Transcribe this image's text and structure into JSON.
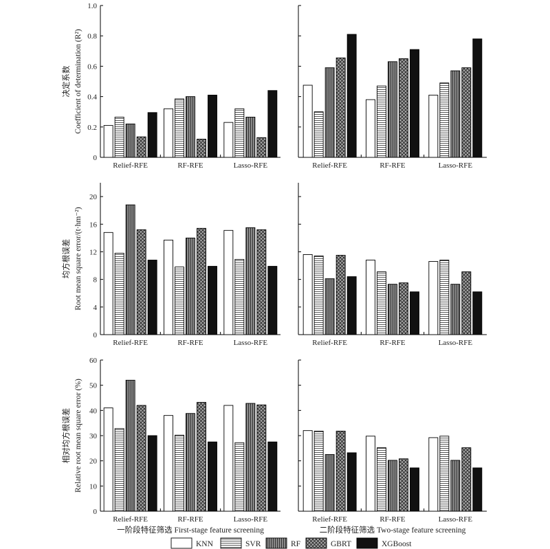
{
  "chart_data": {
    "type": "bar",
    "groups": [
      "Relief-RFE",
      "RF-RFE",
      "Lasso-RFE"
    ],
    "models": [
      "KNN",
      "SVR",
      "RF",
      "GBRT",
      "XGBoost"
    ],
    "columns": [
      {
        "key": "first",
        "caption": "一阶段特征筛选 First-stage feature screening"
      },
      {
        "key": "second",
        "caption": "二阶段特征筛选 Two-stage feature screening"
      }
    ],
    "rows": [
      {
        "key": "r2",
        "ylabel_cn": "决定系数",
        "ylabel_en": "Coefficient of determination (R²)",
        "ylim": [
          0,
          1.0
        ],
        "ticks": [
          "0",
          "0.2",
          "0.4",
          "0.6",
          "0.8",
          "1.0"
        ],
        "first": [
          [
            0.21,
            0.265,
            0.22,
            0.135,
            0.295
          ],
          [
            0.32,
            0.385,
            0.4,
            0.12,
            0.41
          ],
          [
            0.23,
            0.32,
            0.265,
            0.13,
            0.44
          ]
        ],
        "second": [
          [
            0.475,
            0.3,
            0.59,
            0.655,
            0.81
          ],
          [
            0.38,
            0.47,
            0.63,
            0.65,
            0.71
          ],
          [
            0.41,
            0.49,
            0.57,
            0.59,
            0.78
          ]
        ]
      },
      {
        "key": "rmse",
        "ylabel_cn": "均方根误差",
        "ylabel_en": "Root mean square error/(t·hm⁻²)",
        "ylim": [
          0,
          22
        ],
        "ticks": [
          "0",
          "4",
          "8",
          "12",
          "16",
          "20"
        ],
        "first": [
          [
            14.8,
            11.8,
            18.8,
            15.2,
            10.8
          ],
          [
            13.7,
            9.8,
            14.0,
            15.4,
            9.9
          ],
          [
            15.1,
            10.9,
            15.5,
            15.2,
            9.9
          ]
        ],
        "second": [
          [
            11.6,
            11.4,
            8.1,
            11.5,
            8.4
          ],
          [
            10.8,
            9.1,
            7.3,
            7.5,
            6.2
          ],
          [
            10.6,
            10.8,
            7.3,
            9.1,
            6.2
          ]
        ]
      },
      {
        "key": "rrmse",
        "ylabel_cn": "相对均方根误差",
        "ylabel_en": "Relative root mean square error (%)",
        "ylim": [
          0,
          60
        ],
        "ticks": [
          "0",
          "10",
          "20",
          "30",
          "40",
          "50",
          "60"
        ],
        "first": [
          [
            41.0,
            32.8,
            52.0,
            42.0,
            30.0
          ],
          [
            38.0,
            30.2,
            38.8,
            43.2,
            27.5
          ],
          [
            42.0,
            27.2,
            42.8,
            42.2,
            27.5
          ]
        ],
        "second": [
          [
            32.0,
            31.8,
            22.5,
            31.8,
            23.2
          ],
          [
            29.8,
            25.2,
            20.2,
            20.8,
            17.2
          ],
          [
            29.2,
            29.8,
            20.2,
            25.2,
            17.2
          ]
        ]
      }
    ],
    "legend": [
      "KNN",
      "SVR",
      "RF",
      "GBRT",
      "XGBoost"
    ],
    "legend_position": "bottom-center"
  },
  "colors": {
    "knn_fill": "#ffffff",
    "svr_fill": "#ffffff",
    "rf_fill": "#7a7a7a",
    "gbrt_fill": "#9a9a9a",
    "xgb_fill": "#111111",
    "stroke": "#000000"
  }
}
